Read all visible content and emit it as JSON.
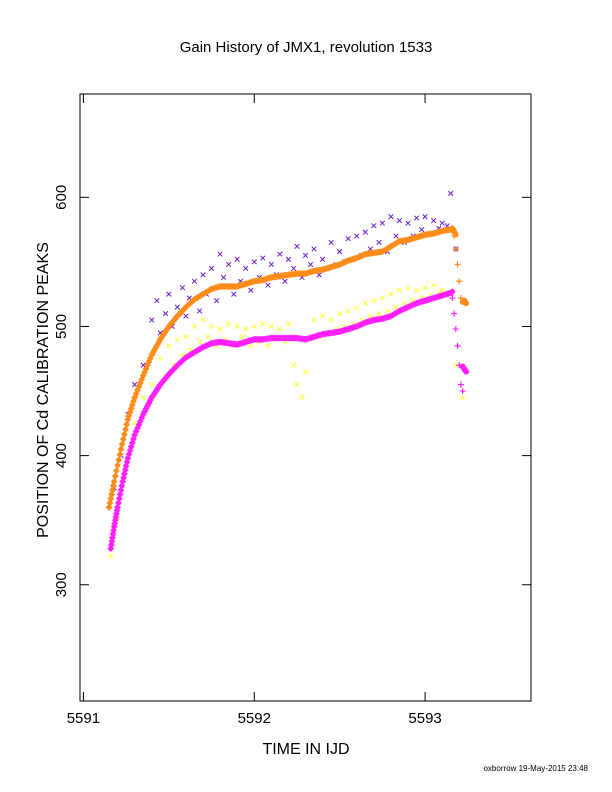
{
  "chart_data": {
    "type": "scatter",
    "title": "Gain History of JMX1, revolution 1533",
    "xlabel": "TIME IN IJD",
    "ylabel": "POSITION OF Cd CALIBRATION PEAKS",
    "xlim": [
      5590.98,
      5593.62
    ],
    "ylim": [
      210,
      680
    ],
    "x_ticks": [
      5591,
      5592,
      5593
    ],
    "x_tick_labels": [
      "5591",
      "5592",
      "5593"
    ],
    "y_ticks": [
      300,
      400,
      500,
      600
    ],
    "y_tick_labels": [
      "300",
      "400",
      "500",
      "600"
    ],
    "grid": false,
    "legend": "none",
    "footer": "oxborrow 19-May-2015 23:48",
    "colors": {
      "orange": "#ff8c1a",
      "magenta": "#ff20ff",
      "purple": "#6a1fd1",
      "yellow": "#ffff33"
    },
    "series": [
      {
        "color": "#ff8c1a",
        "marker": "dense",
        "points": [
          [
            5591.15,
            360
          ],
          [
            5591.18,
            380
          ],
          [
            5591.22,
            405
          ],
          [
            5591.26,
            428
          ],
          [
            5591.3,
            445
          ],
          [
            5591.35,
            462
          ],
          [
            5591.4,
            478
          ],
          [
            5591.45,
            490
          ],
          [
            5591.5,
            500
          ],
          [
            5591.55,
            508
          ],
          [
            5591.6,
            515
          ],
          [
            5591.65,
            521
          ],
          [
            5591.7,
            525
          ],
          [
            5591.75,
            529
          ],
          [
            5591.8,
            531
          ],
          [
            5591.85,
            531
          ],
          [
            5591.9,
            531
          ],
          [
            5591.95,
            533
          ],
          [
            5592.0,
            535
          ],
          [
            5592.05,
            536
          ],
          [
            5592.1,
            538
          ],
          [
            5592.15,
            539
          ],
          [
            5592.2,
            540
          ],
          [
            5592.25,
            541
          ],
          [
            5592.3,
            541
          ],
          [
            5592.35,
            543
          ],
          [
            5592.4,
            544
          ],
          [
            5592.45,
            546
          ],
          [
            5592.5,
            548
          ],
          [
            5592.55,
            551
          ],
          [
            5592.6,
            553
          ],
          [
            5592.65,
            556
          ],
          [
            5592.7,
            557
          ],
          [
            5592.75,
            558
          ],
          [
            5592.8,
            562
          ],
          [
            5592.85,
            566
          ],
          [
            5592.9,
            567
          ],
          [
            5592.95,
            569
          ],
          [
            5593.0,
            571
          ],
          [
            5593.05,
            572
          ],
          [
            5593.1,
            574
          ],
          [
            5593.15,
            575
          ],
          [
            5593.16,
            576
          ],
          [
            5593.18,
            571
          ]
        ]
      },
      {
        "color": "#ff8c1a",
        "marker": "plus",
        "points": [
          [
            5593.17,
            570
          ],
          [
            5593.18,
            560
          ],
          [
            5593.19,
            548
          ],
          [
            5593.2,
            535
          ],
          [
            5593.21,
            522
          ]
        ]
      },
      {
        "color": "#ff8c1a",
        "marker": "dot",
        "points": [
          [
            5593.22,
            519
          ],
          [
            5593.23,
            520
          ],
          [
            5593.24,
            518
          ]
        ]
      },
      {
        "color": "#ff20ff",
        "marker": "dense",
        "points": [
          [
            5591.16,
            328
          ],
          [
            5591.18,
            345
          ],
          [
            5591.2,
            360
          ],
          [
            5591.23,
            380
          ],
          [
            5591.26,
            398
          ],
          [
            5591.3,
            416
          ],
          [
            5591.35,
            432
          ],
          [
            5591.4,
            445
          ],
          [
            5591.45,
            455
          ],
          [
            5591.5,
            463
          ],
          [
            5591.55,
            470
          ],
          [
            5591.6,
            476
          ],
          [
            5591.65,
            480
          ],
          [
            5591.7,
            484
          ],
          [
            5591.75,
            487
          ],
          [
            5591.8,
            488
          ],
          [
            5591.85,
            487
          ],
          [
            5591.9,
            486
          ],
          [
            5591.95,
            488
          ],
          [
            5592.0,
            490
          ],
          [
            5592.05,
            490
          ],
          [
            5592.1,
            491
          ],
          [
            5592.15,
            491
          ],
          [
            5592.2,
            491
          ],
          [
            5592.25,
            491
          ],
          [
            5592.3,
            490
          ],
          [
            5592.35,
            492
          ],
          [
            5592.4,
            494
          ],
          [
            5592.45,
            495
          ],
          [
            5592.5,
            496
          ],
          [
            5592.55,
            498
          ],
          [
            5592.6,
            500
          ],
          [
            5592.65,
            503
          ],
          [
            5592.7,
            505
          ],
          [
            5592.75,
            506
          ],
          [
            5592.8,
            508
          ],
          [
            5592.85,
            512
          ],
          [
            5592.9,
            515
          ],
          [
            5592.95,
            518
          ],
          [
            5593.0,
            520
          ],
          [
            5593.05,
            522
          ],
          [
            5593.1,
            524
          ],
          [
            5593.15,
            526
          ],
          [
            5593.16,
            527
          ]
        ]
      },
      {
        "color": "#ff20ff",
        "marker": "plus",
        "points": [
          [
            5593.16,
            522
          ],
          [
            5593.17,
            510
          ],
          [
            5593.18,
            498
          ],
          [
            5593.19,
            485
          ],
          [
            5593.2,
            470
          ],
          [
            5593.21,
            455
          ],
          [
            5593.22,
            450
          ]
        ]
      },
      {
        "color": "#ff20ff",
        "marker": "dot",
        "points": [
          [
            5593.22,
            469
          ],
          [
            5593.23,
            467
          ],
          [
            5593.24,
            465
          ]
        ]
      },
      {
        "color": "#6a1fd1",
        "marker": "cross",
        "points": [
          [
            5591.18,
            375
          ],
          [
            5591.22,
            400
          ],
          [
            5591.26,
            432
          ],
          [
            5591.3,
            455
          ],
          [
            5591.35,
            470
          ],
          [
            5591.4,
            505
          ],
          [
            5591.43,
            520
          ],
          [
            5591.45,
            495
          ],
          [
            5591.48,
            510
          ],
          [
            5591.5,
            525
          ],
          [
            5591.52,
            500
          ],
          [
            5591.55,
            515
          ],
          [
            5591.58,
            530
          ],
          [
            5591.6,
            508
          ],
          [
            5591.62,
            522
          ],
          [
            5591.65,
            535
          ],
          [
            5591.68,
            512
          ],
          [
            5591.7,
            540
          ],
          [
            5591.72,
            525
          ],
          [
            5591.75,
            545
          ],
          [
            5591.78,
            520
          ],
          [
            5591.8,
            556
          ],
          [
            5591.82,
            538
          ],
          [
            5591.85,
            548
          ],
          [
            5591.88,
            525
          ],
          [
            5591.9,
            552
          ],
          [
            5591.92,
            535
          ],
          [
            5591.95,
            545
          ],
          [
            5591.98,
            528
          ],
          [
            5592.0,
            550
          ],
          [
            5592.03,
            538
          ],
          [
            5592.05,
            553
          ],
          [
            5592.08,
            532
          ],
          [
            5592.1,
            548
          ],
          [
            5592.13,
            540
          ],
          [
            5592.15,
            556
          ],
          [
            5592.18,
            535
          ],
          [
            5592.2,
            552
          ],
          [
            5592.23,
            545
          ],
          [
            5592.25,
            562
          ],
          [
            5592.28,
            538
          ],
          [
            5592.3,
            555
          ],
          [
            5592.33,
            548
          ],
          [
            5592.35,
            560
          ],
          [
            5592.38,
            540
          ],
          [
            5592.4,
            552
          ],
          [
            5592.43,
            545
          ],
          [
            5592.45,
            565
          ],
          [
            5592.48,
            548
          ],
          [
            5592.5,
            558
          ],
          [
            5592.53,
            550
          ],
          [
            5592.55,
            568
          ],
          [
            5592.58,
            552
          ],
          [
            5592.6,
            570
          ],
          [
            5592.63,
            555
          ],
          [
            5592.65,
            573
          ],
          [
            5592.68,
            560
          ],
          [
            5592.7,
            578
          ],
          [
            5592.73,
            565
          ],
          [
            5592.75,
            580
          ],
          [
            5592.78,
            558
          ],
          [
            5592.8,
            585
          ],
          [
            5592.83,
            570
          ],
          [
            5592.85,
            582
          ],
          [
            5592.88,
            565
          ],
          [
            5592.9,
            580
          ],
          [
            5592.93,
            570
          ],
          [
            5592.95,
            584
          ],
          [
            5592.98,
            575
          ],
          [
            5593.0,
            585
          ],
          [
            5593.03,
            572
          ],
          [
            5593.05,
            582
          ],
          [
            5593.08,
            576
          ],
          [
            5593.1,
            580
          ],
          [
            5593.13,
            578
          ],
          [
            5593.15,
            603
          ],
          [
            5593.18,
            560
          ]
        ]
      },
      {
        "color": "#ffff33",
        "marker": "cross",
        "points": [
          [
            5591.16,
            322
          ],
          [
            5591.2,
            350
          ],
          [
            5591.25,
            390
          ],
          [
            5591.3,
            425
          ],
          [
            5591.35,
            445
          ],
          [
            5591.4,
            455
          ],
          [
            5591.45,
            475
          ],
          [
            5591.48,
            462
          ],
          [
            5591.5,
            485
          ],
          [
            5591.53,
            470
          ],
          [
            5591.55,
            490
          ],
          [
            5591.58,
            478
          ],
          [
            5591.6,
            492
          ],
          [
            5591.63,
            482
          ],
          [
            5591.65,
            500
          ],
          [
            5591.68,
            488
          ],
          [
            5591.7,
            505
          ],
          [
            5591.73,
            492
          ],
          [
            5591.75,
            500
          ],
          [
            5591.78,
            485
          ],
          [
            5591.8,
            498
          ],
          [
            5591.83,
            490
          ],
          [
            5591.85,
            502
          ],
          [
            5591.88,
            485
          ],
          [
            5591.9,
            500
          ],
          [
            5591.93,
            492
          ],
          [
            5591.95,
            498
          ],
          [
            5591.98,
            485
          ],
          [
            5592.0,
            500
          ],
          [
            5592.03,
            488
          ],
          [
            5592.05,
            502
          ],
          [
            5592.08,
            485
          ],
          [
            5592.1,
            500
          ],
          [
            5592.13,
            490
          ],
          [
            5592.15,
            498
          ],
          [
            5592.18,
            488
          ],
          [
            5592.2,
            502
          ],
          [
            5592.23,
            470
          ],
          [
            5592.25,
            455
          ],
          [
            5592.28,
            445
          ],
          [
            5592.3,
            465
          ],
          [
            5592.33,
            490
          ],
          [
            5592.35,
            505
          ],
          [
            5592.38,
            492
          ],
          [
            5592.4,
            508
          ],
          [
            5592.43,
            495
          ],
          [
            5592.45,
            505
          ],
          [
            5592.48,
            498
          ],
          [
            5592.5,
            510
          ],
          [
            5592.53,
            500
          ],
          [
            5592.55,
            512
          ],
          [
            5592.58,
            502
          ],
          [
            5592.6,
            514
          ],
          [
            5592.63,
            505
          ],
          [
            5592.65,
            518
          ],
          [
            5592.68,
            508
          ],
          [
            5592.7,
            520
          ],
          [
            5592.73,
            510
          ],
          [
            5592.75,
            522
          ],
          [
            5592.78,
            512
          ],
          [
            5592.8,
            525
          ],
          [
            5592.83,
            515
          ],
          [
            5592.85,
            528
          ],
          [
            5592.88,
            518
          ],
          [
            5592.9,
            530
          ],
          [
            5592.93,
            520
          ],
          [
            5592.95,
            528
          ],
          [
            5592.98,
            522
          ],
          [
            5593.0,
            530
          ],
          [
            5593.03,
            524
          ],
          [
            5593.05,
            532
          ],
          [
            5593.08,
            526
          ],
          [
            5593.1,
            528
          ],
          [
            5593.13,
            525
          ],
          [
            5593.18,
            470
          ],
          [
            5593.22,
            445
          ]
        ]
      }
    ]
  }
}
